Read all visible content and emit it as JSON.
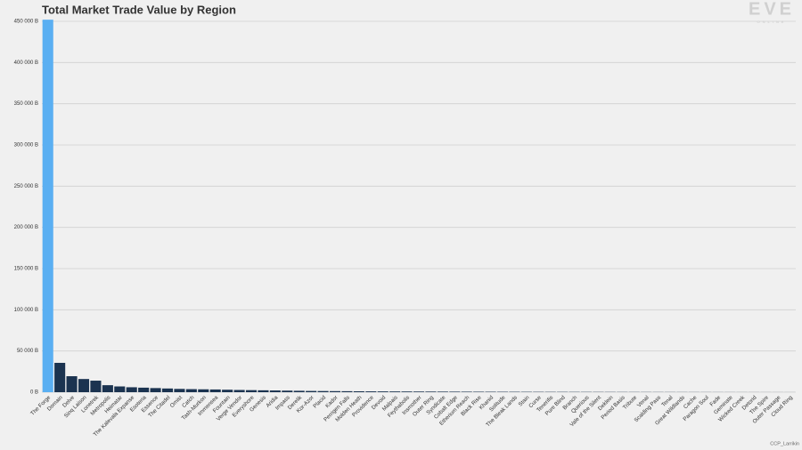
{
  "chart_data": {
    "type": "bar",
    "title": "Total Market Trade Value by Region",
    "logo": "EVE",
    "logo_sub": "ONLINE",
    "credit": "CCP_Larrikin",
    "categories": [
      "The Forge",
      "Domain",
      "Delve",
      "Sinq Laison",
      "Lonetrek",
      "Metropolis",
      "Heimatar",
      "The Kalevala Expanse",
      "Esoteria",
      "Essence",
      "The Citadel",
      "Omist",
      "Catch",
      "Tash-Murkon",
      "Immensea",
      "Fountain",
      "Verge Vendor",
      "Everyshore",
      "Genesis",
      "Aridia",
      "Impass",
      "Derelik",
      "Kor-Azor",
      "Placid",
      "Kador",
      "Perrigen Falls",
      "Molden Heath",
      "Providence",
      "Devoid",
      "Malpais",
      "Feythabolis",
      "Insmother",
      "Outer Ring",
      "Syndicate",
      "Cobalt Edge",
      "Etherium Reach",
      "Black Rise",
      "Khanid",
      "Solitude",
      "The Bleak Lands",
      "Stain",
      "Curse",
      "Tenerifis",
      "Pure Blind",
      "Branch",
      "Querious",
      "Vale of the Silent",
      "Deklein",
      "Period Basis",
      "Tribute",
      "Venal",
      "Scalding Pass",
      "Tenal",
      "Great Wildlands",
      "Cache",
      "Paragon Soul",
      "Fade",
      "Geminate",
      "Wicked Creek",
      "Detorid",
      "The Spire",
      "Outer Passage",
      "Cloud Ring"
    ],
    "values": [
      452000,
      35600,
      19400,
      16000,
      14000,
      8500,
      7000,
      6000,
      5500,
      5000,
      4500,
      4000,
      3700,
      3500,
      3300,
      3000,
      2700,
      2500,
      2300,
      2100,
      1900,
      1700,
      1500,
      1400,
      1300,
      1200,
      1100,
      1000,
      950,
      900,
      850,
      800,
      750,
      700,
      650,
      600,
      560,
      520,
      480,
      450,
      420,
      390,
      360,
      340,
      320,
      300,
      280,
      260,
      240,
      220,
      200,
      185,
      170,
      155,
      140,
      125,
      110,
      100,
      90,
      80,
      70,
      60,
      50
    ],
    "colors": [
      "#5aaff2",
      "#1b3350",
      "#1b3350",
      "#1b3350",
      "#1b3350",
      "#1b3350",
      "#1b3350",
      "#1b3350",
      "#1b3350",
      "#1b3350",
      "#1b3350",
      "#1b3350",
      "#1b3350",
      "#1b3350",
      "#1b3350",
      "#1b3350",
      "#1b3350",
      "#1b3350",
      "#1b3350",
      "#1b3350",
      "#1b3350",
      "#1b3350",
      "#1b3350",
      "#1b3350",
      "#1b3350",
      "#1b3350",
      "#1b3350",
      "#1b3350",
      "#1b3350",
      "#1b3350",
      "#1b3350",
      "#1b3350",
      "#1b3350",
      "#1b3350",
      "#1b3350",
      "#1b3350",
      "#1b3350",
      "#1b3350",
      "#1b3350",
      "#1b3350",
      "#1b3350",
      "#1b3350",
      "#1b3350",
      "#1b3350",
      "#1b3350",
      "#1b3350",
      "#1b3350",
      "#1b3350",
      "#1b3350",
      "#1b3350",
      "#1b3350",
      "#1b3350",
      "#1b3350",
      "#1b3350",
      "#1b3350",
      "#1b3350",
      "#1b3350",
      "#1b3350",
      "#1b3350",
      "#1b3350",
      "#1b3350",
      "#1b3350",
      "#1b3350"
    ],
    "ylim": [
      0,
      450000
    ],
    "yticks": [
      {
        "value": 0,
        "label": "0 B"
      },
      {
        "value": 50000,
        "label": "50 000 B"
      },
      {
        "value": 100000,
        "label": "100 000 B"
      },
      {
        "value": 150000,
        "label": "150 000 B"
      },
      {
        "value": 200000,
        "label": "200 000 B"
      },
      {
        "value": 250000,
        "label": "250 000 B"
      },
      {
        "value": 300000,
        "label": "300 000 B"
      },
      {
        "value": 350000,
        "label": "350 000 B"
      },
      {
        "value": 400000,
        "label": "400 000 B"
      },
      {
        "value": 450000,
        "label": "450 000 B"
      }
    ],
    "grid": true
  }
}
